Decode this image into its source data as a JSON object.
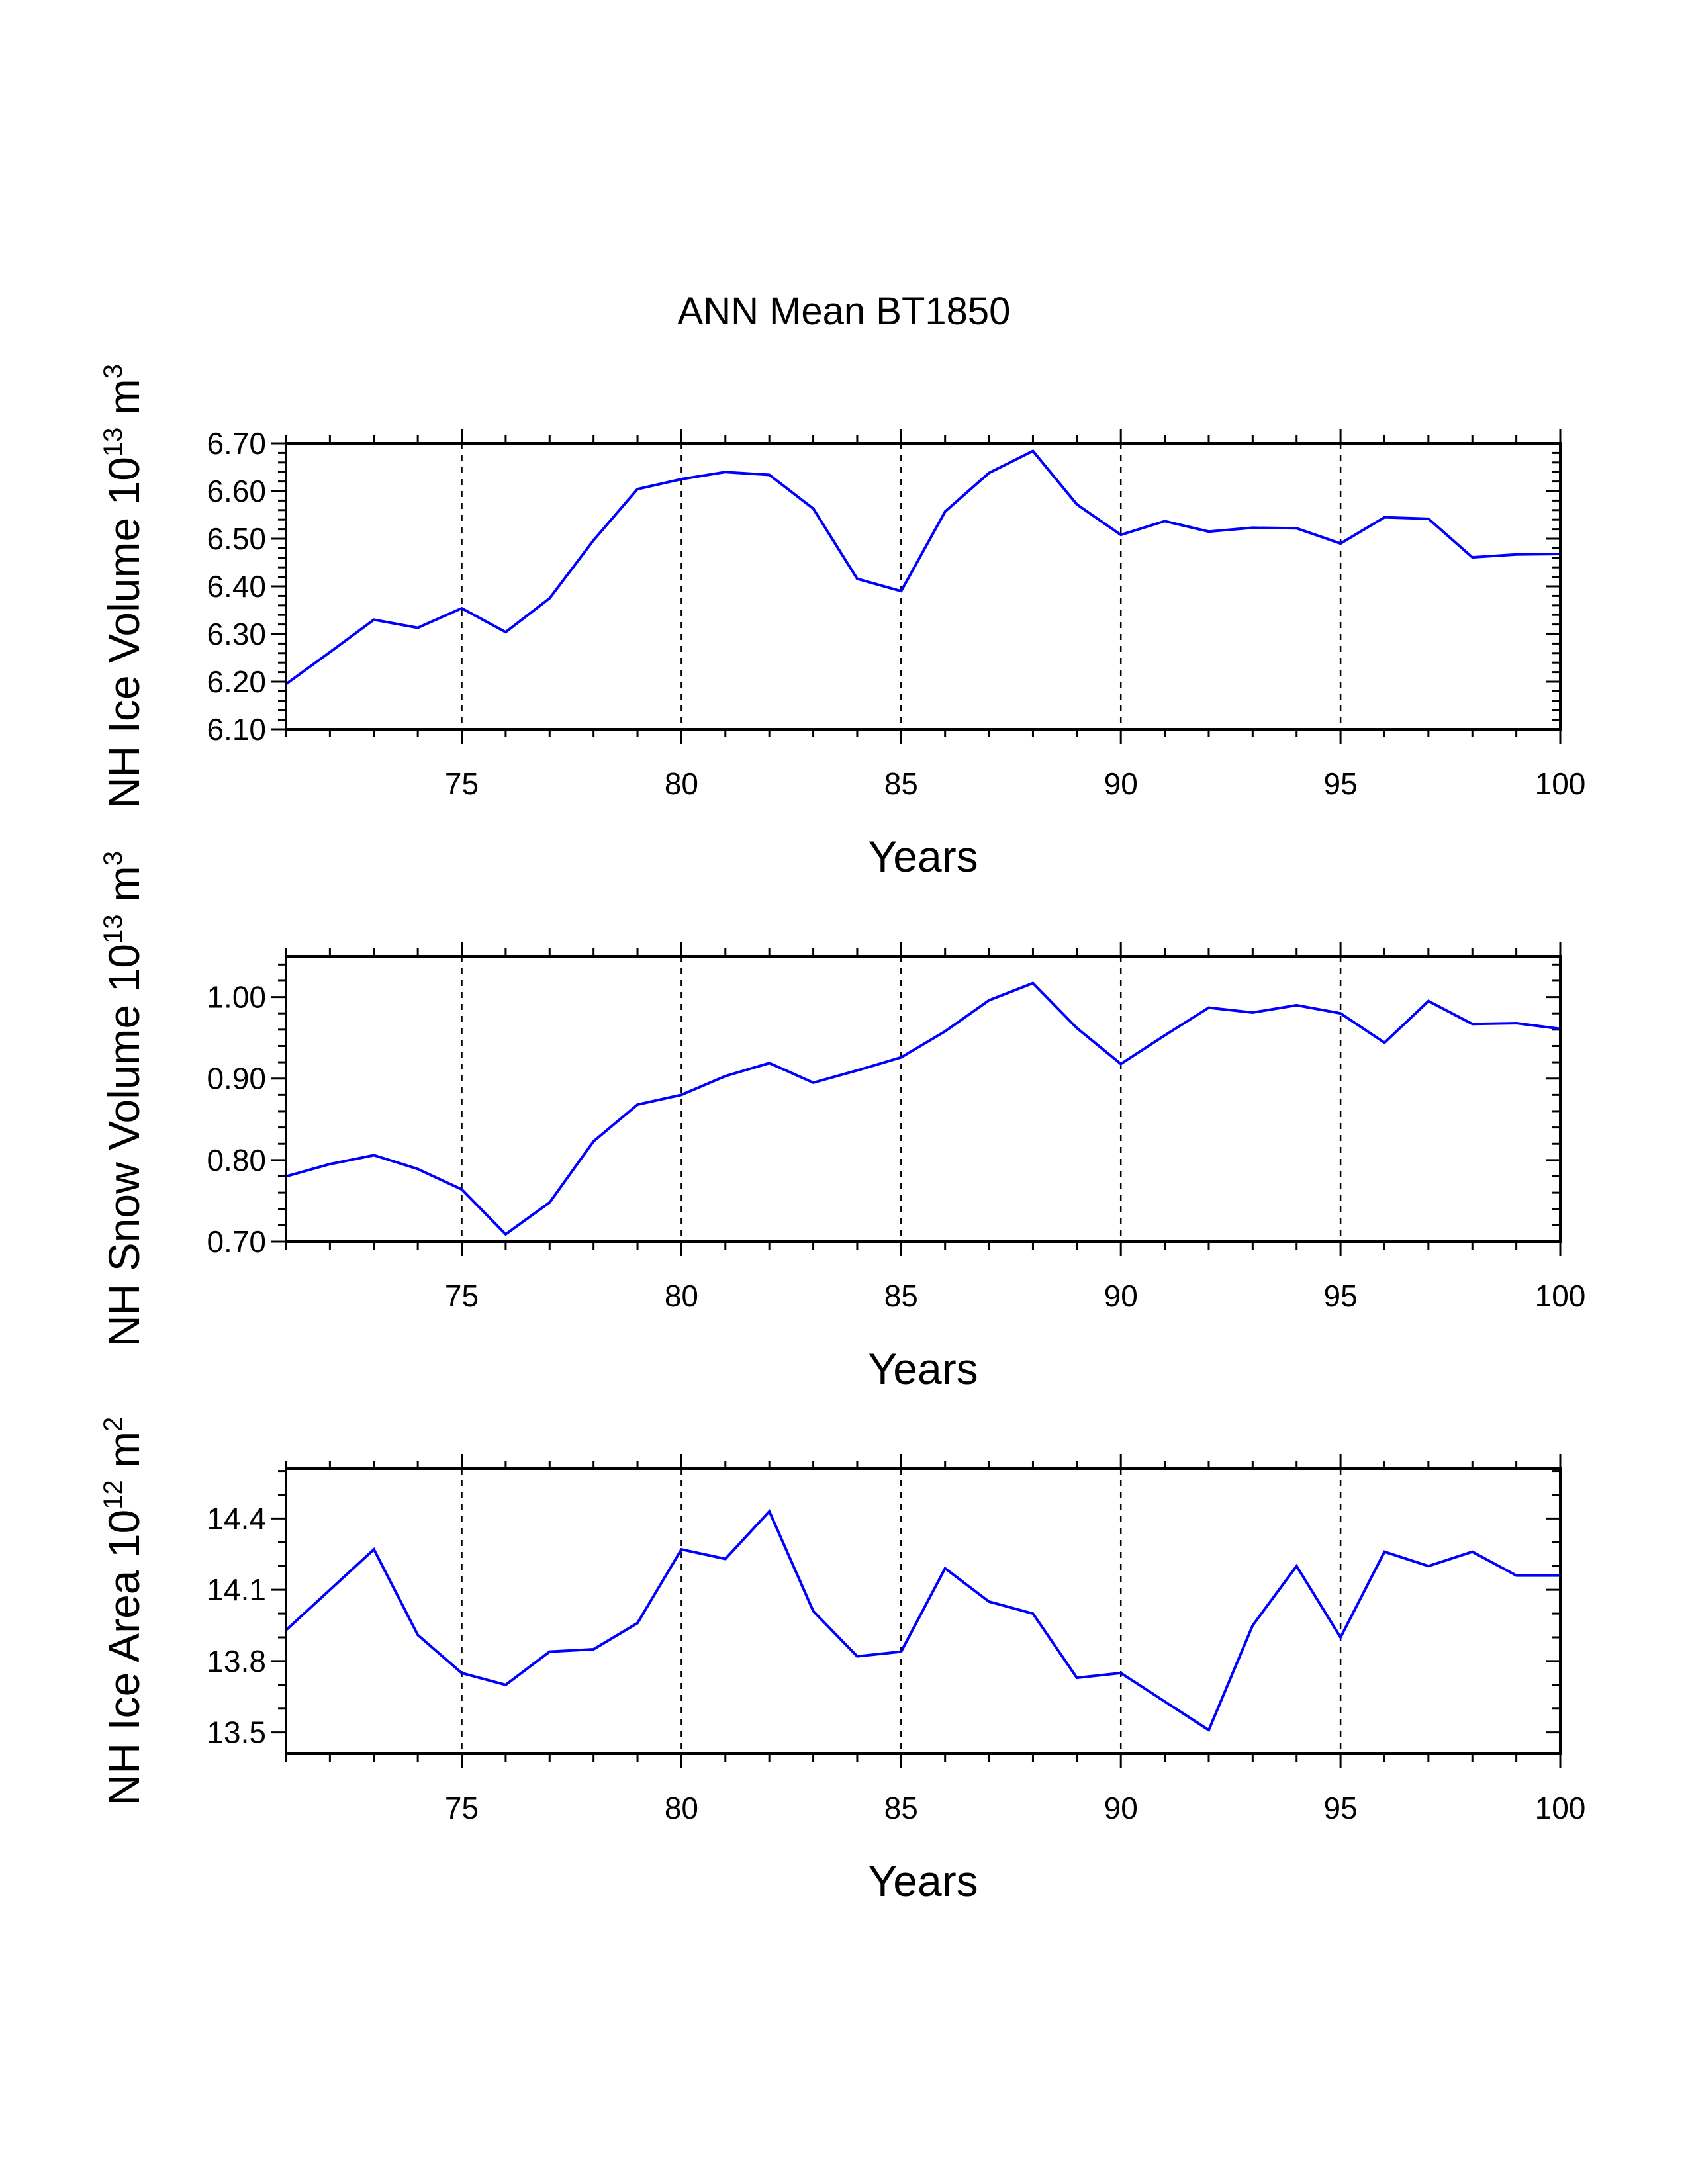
{
  "title": "ANN Mean BT1850",
  "chart_data": [
    {
      "type": "line",
      "ylabel": {
        "text": "NH Ice Volume 10",
        "exp": "13",
        "tail": " m",
        "unit_exp": "3"
      },
      "xlabel": "Years",
      "xlim": [
        71,
        100
      ],
      "xticks": [
        75,
        80,
        85,
        90,
        95,
        100
      ],
      "xtick_labels": [
        "75",
        "80",
        "85",
        "90",
        "95",
        "100"
      ],
      "ylim": [
        6.1,
        6.7
      ],
      "yticks": [
        6.1,
        6.2,
        6.3,
        6.4,
        6.5,
        6.6,
        6.7
      ],
      "ytick_labels": [
        "6.10",
        "6.20",
        "6.30",
        "6.40",
        "6.50",
        "6.60",
        "6.70"
      ],
      "yminor_step": 0.02,
      "vgrid": [
        75,
        80,
        85,
        90,
        95
      ],
      "color": "#0000ff",
      "x": [
        71,
        72,
        73,
        74,
        75,
        76,
        77,
        78,
        79,
        80,
        81,
        82,
        83,
        84,
        85,
        86,
        87,
        88,
        89,
        90,
        91,
        92,
        93,
        94,
        95,
        96,
        97,
        98,
        99,
        100
      ],
      "y": [
        6.195,
        6.262,
        6.33,
        6.313,
        6.354,
        6.304,
        6.375,
        6.497,
        6.604,
        6.625,
        6.64,
        6.634,
        6.563,
        6.416,
        6.39,
        6.557,
        6.638,
        6.684,
        6.572,
        6.508,
        6.537,
        6.515,
        6.523,
        6.522,
        6.49,
        6.545,
        6.542,
        6.461,
        6.467,
        6.468
      ]
    },
    {
      "type": "line",
      "ylabel": {
        "text": "NH Snow Volume 10",
        "exp": "13",
        "tail": " m",
        "unit_exp": "3"
      },
      "xlabel": "Years",
      "xlim": [
        71,
        100
      ],
      "xticks": [
        75,
        80,
        85,
        90,
        95,
        100
      ],
      "xtick_labels": [
        "75",
        "80",
        "85",
        "90",
        "95",
        "100"
      ],
      "ylim": [
        0.7,
        1.05
      ],
      "yticks": [
        0.7,
        0.8,
        0.9,
        1.0
      ],
      "ytick_labels": [
        "0.70",
        "0.80",
        "0.90",
        "1.00"
      ],
      "yminor_step": 0.02,
      "vgrid": [
        75,
        80,
        85,
        90,
        95
      ],
      "color": "#0000ff",
      "x": [
        71,
        72,
        73,
        74,
        75,
        76,
        77,
        78,
        79,
        80,
        81,
        82,
        83,
        84,
        85,
        86,
        87,
        88,
        89,
        90,
        91,
        92,
        93,
        94,
        95,
        96,
        97,
        98,
        99,
        100
      ],
      "y": [
        0.78,
        0.795,
        0.806,
        0.789,
        0.764,
        0.709,
        0.748,
        0.823,
        0.868,
        0.88,
        0.903,
        0.919,
        0.895,
        0.91,
        0.926,
        0.958,
        0.996,
        1.017,
        0.962,
        0.918,
        0.953,
        0.987,
        0.981,
        0.99,
        0.98,
        0.944,
        0.995,
        0.967,
        0.968,
        0.961
      ]
    },
    {
      "type": "line",
      "ylabel": {
        "text": "NH Ice Area 10",
        "exp": "12",
        "tail": " m",
        "unit_exp": "2"
      },
      "xlabel": "Years",
      "xlim": [
        71,
        100
      ],
      "xticks": [
        75,
        80,
        85,
        90,
        95,
        100
      ],
      "xtick_labels": [
        "75",
        "80",
        "85",
        "90",
        "95",
        "100"
      ],
      "ylim": [
        13.41,
        14.61
      ],
      "yticks": [
        13.5,
        13.8,
        14.1,
        14.4
      ],
      "ytick_labels": [
        "13.5",
        "13.8",
        "14.1",
        "14.4"
      ],
      "yminor_step": 0.1,
      "vgrid": [
        75,
        80,
        85,
        90,
        95
      ],
      "color": "#0000ff",
      "x": [
        71,
        72,
        73,
        74,
        75,
        76,
        77,
        78,
        79,
        80,
        81,
        82,
        83,
        84,
        85,
        86,
        87,
        88,
        89,
        90,
        91,
        92,
        93,
        94,
        95,
        96,
        97,
        98,
        99,
        100
      ],
      "y": [
        13.93,
        14.1,
        14.27,
        13.91,
        13.75,
        13.7,
        13.84,
        13.85,
        13.96,
        14.27,
        14.23,
        14.43,
        14.01,
        13.82,
        13.84,
        14.19,
        14.05,
        14.0,
        13.73,
        13.75,
        13.63,
        13.51,
        13.95,
        14.2,
        13.9,
        14.26,
        14.2,
        14.26,
        14.16,
        14.16
      ]
    }
  ]
}
